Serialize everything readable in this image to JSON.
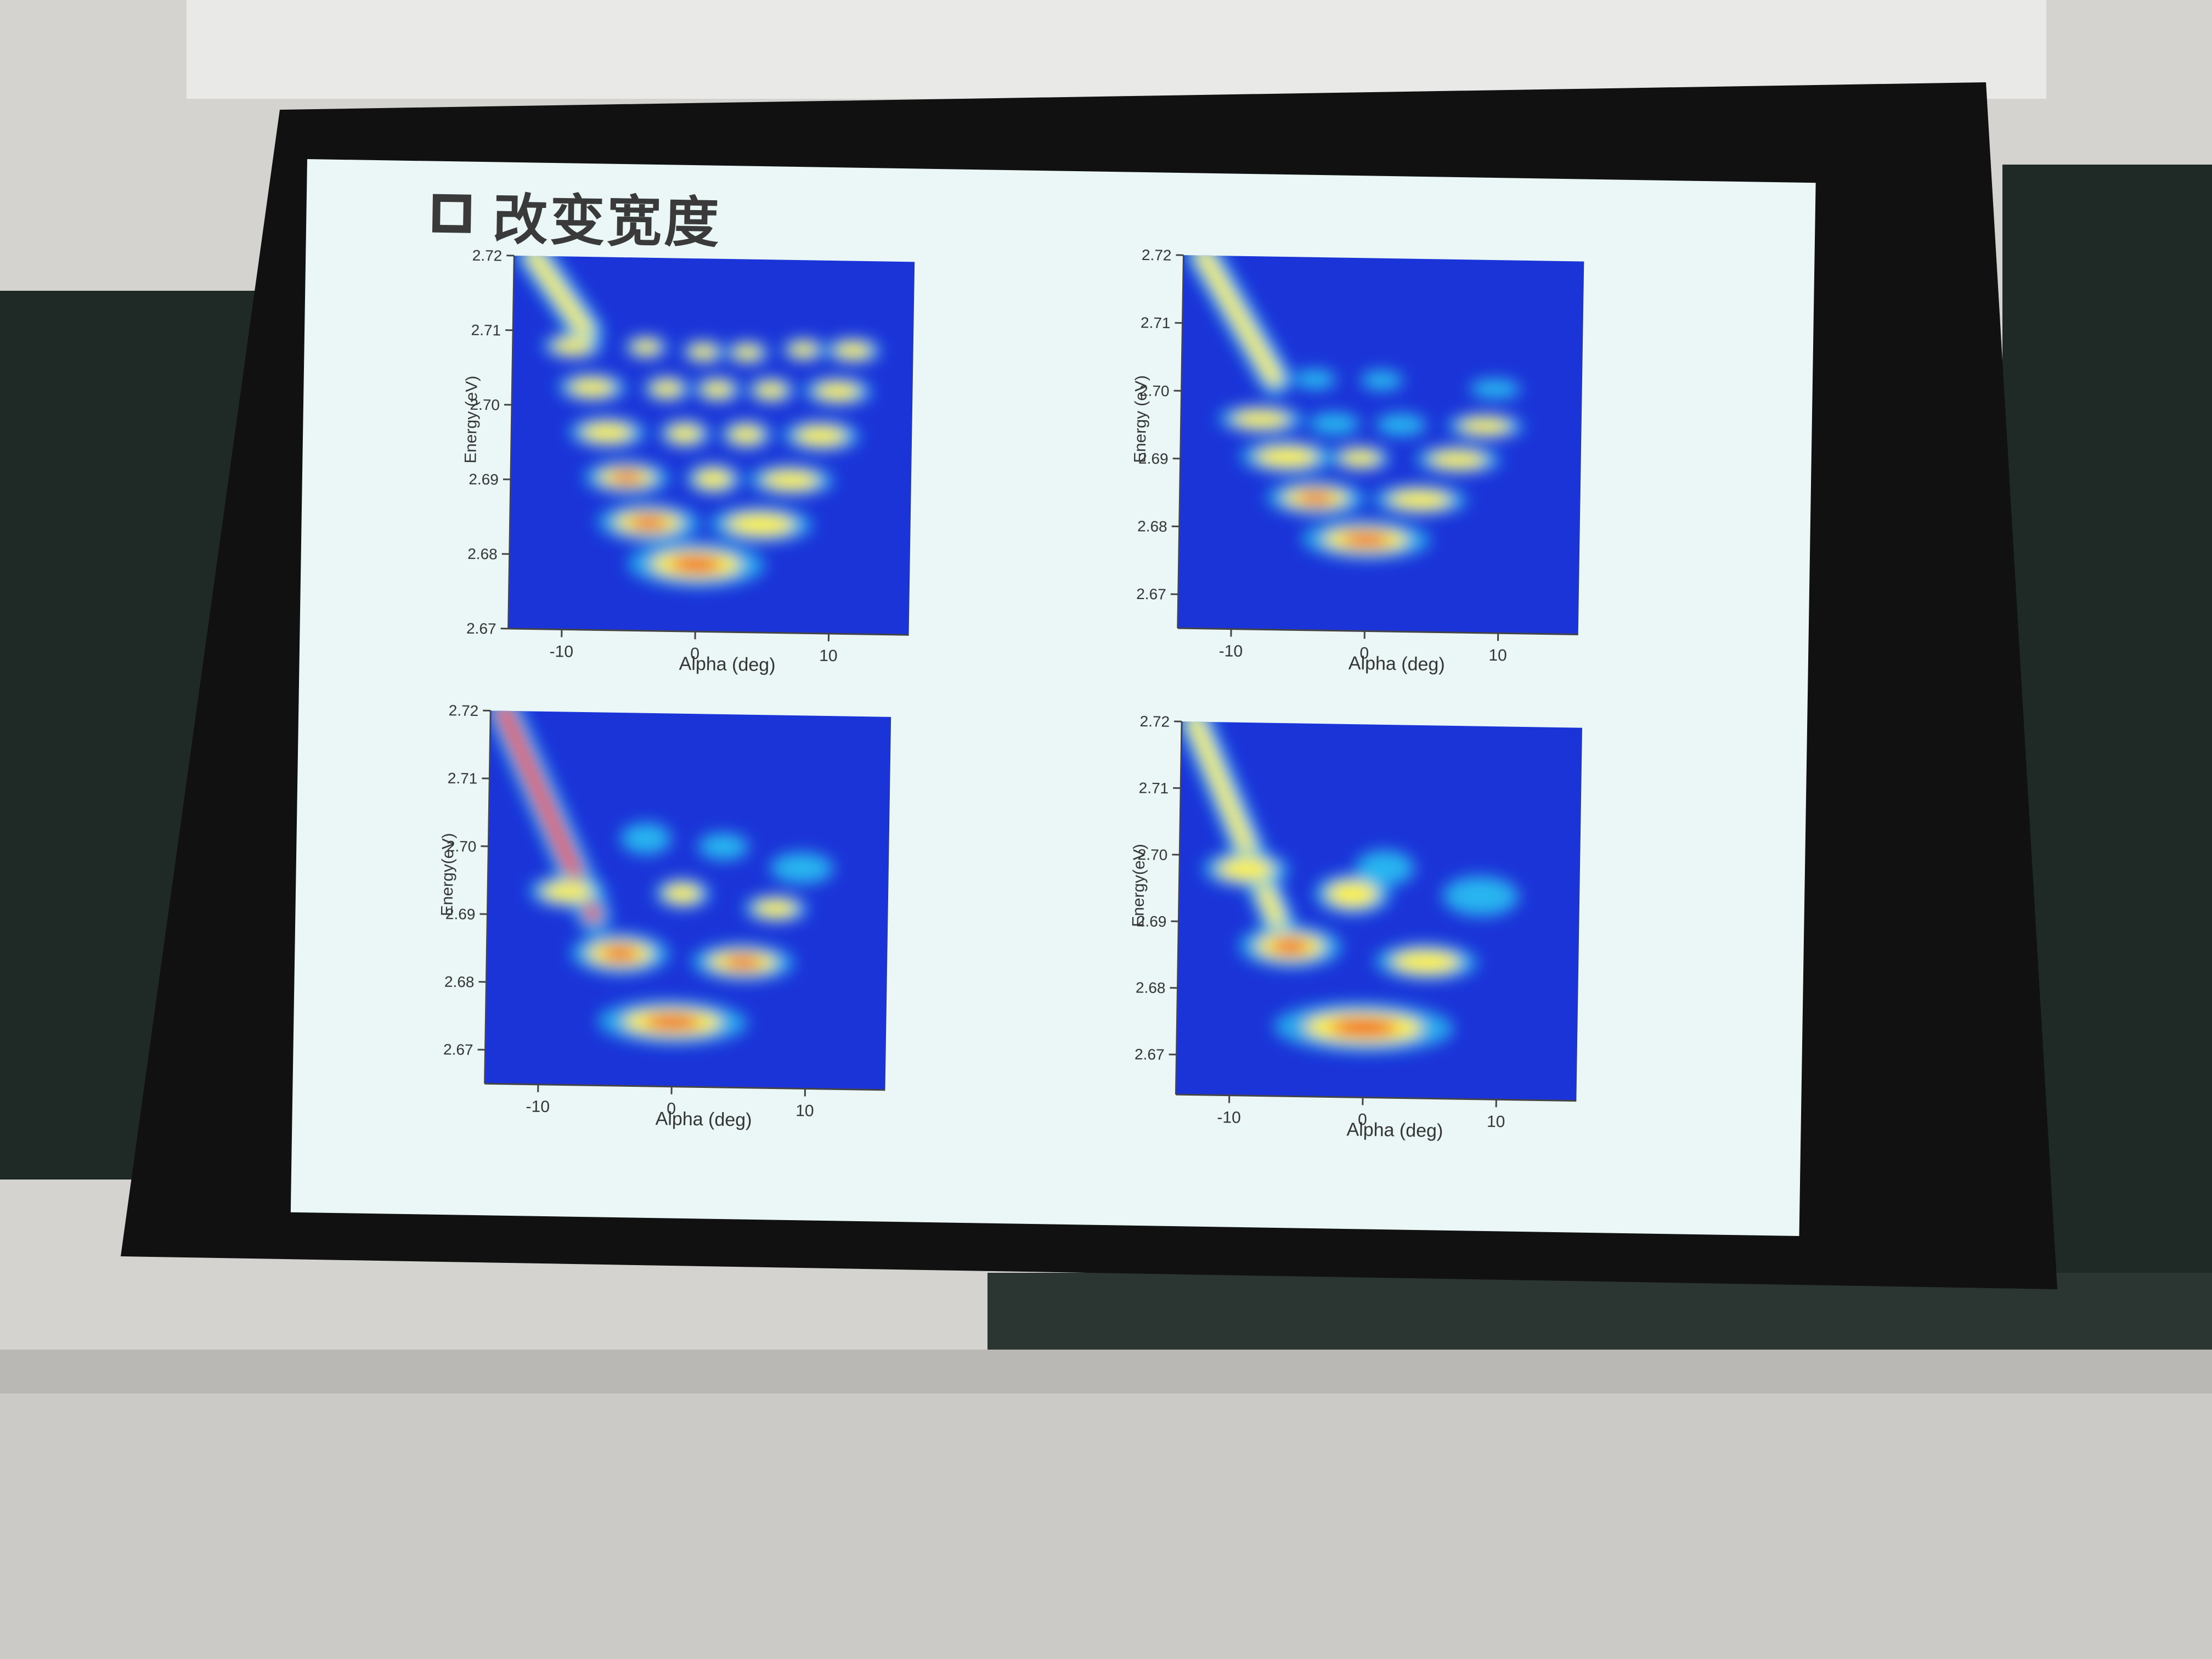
{
  "slide": {
    "title": "改变宽度"
  },
  "chart_data": [
    {
      "type": "heatmap",
      "xlabel": "Alpha (deg)",
      "ylabel": "Energy (eV)",
      "xticks": [
        -10,
        0,
        10
      ],
      "yticks": [
        2.67,
        2.68,
        2.69,
        2.7,
        2.71,
        2.72
      ],
      "xlim": [
        -14,
        16
      ],
      "ylim": [
        2.67,
        2.72
      ],
      "colormap": [
        "#1b34d8",
        "#28b6f0",
        "#fff23a",
        "#f0401f"
      ],
      "spots": [
        {
          "x": 0,
          "y": 2.679,
          "w": 3.2,
          "h": 0.0018,
          "v": 1.0
        },
        {
          "x": -3.6,
          "y": 2.6845,
          "w": 2.4,
          "h": 0.0015,
          "v": 0.9
        },
        {
          "x": 4.8,
          "y": 2.6845,
          "w": 2.4,
          "h": 0.0014,
          "v": 0.8
        },
        {
          "x": -5.3,
          "y": 2.6905,
          "w": 2.0,
          "h": 0.0013,
          "v": 0.85
        },
        {
          "x": 1.2,
          "y": 2.6905,
          "w": 1.3,
          "h": 0.0012,
          "v": 0.75
        },
        {
          "x": 7.0,
          "y": 2.6905,
          "w": 2.0,
          "h": 0.0012,
          "v": 0.75
        },
        {
          "x": -6.8,
          "y": 2.6965,
          "w": 1.8,
          "h": 0.0012,
          "v": 0.8
        },
        {
          "x": -1.0,
          "y": 2.6965,
          "w": 1.2,
          "h": 0.0011,
          "v": 0.7
        },
        {
          "x": 3.6,
          "y": 2.6965,
          "w": 1.2,
          "h": 0.0011,
          "v": 0.7
        },
        {
          "x": 9.2,
          "y": 2.6965,
          "w": 1.8,
          "h": 0.0012,
          "v": 0.75
        },
        {
          "x": -8.0,
          "y": 2.7025,
          "w": 1.6,
          "h": 0.0011,
          "v": 0.75
        },
        {
          "x": -2.4,
          "y": 2.7025,
          "w": 1.1,
          "h": 0.001,
          "v": 0.65
        },
        {
          "x": 1.4,
          "y": 2.7025,
          "w": 1.1,
          "h": 0.001,
          "v": 0.65
        },
        {
          "x": 5.4,
          "y": 2.7025,
          "w": 1.1,
          "h": 0.001,
          "v": 0.65
        },
        {
          "x": 10.4,
          "y": 2.7025,
          "w": 1.6,
          "h": 0.0011,
          "v": 0.7
        },
        {
          "x": -9.5,
          "y": 2.708,
          "w": 1.4,
          "h": 0.001,
          "v": 0.55
        },
        {
          "x": -4.0,
          "y": 2.708,
          "w": 1.0,
          "h": 0.0009,
          "v": 0.45
        },
        {
          "x": 0.3,
          "y": 2.7075,
          "w": 1.0,
          "h": 0.0009,
          "v": 0.45
        },
        {
          "x": 3.6,
          "y": 2.7075,
          "w": 1.0,
          "h": 0.0009,
          "v": 0.45
        },
        {
          "x": 7.8,
          "y": 2.708,
          "w": 1.0,
          "h": 0.0009,
          "v": 0.45
        },
        {
          "x": 11.5,
          "y": 2.708,
          "w": 1.3,
          "h": 0.001,
          "v": 0.5
        }
      ],
      "streak": {
        "x0": -12.5,
        "y0": 2.72,
        "x1": -8.5,
        "y1": 2.71,
        "v": 0.8
      }
    },
    {
      "type": "heatmap",
      "xlabel": "Alpha (deg)",
      "ylabel": "Energy (eV)",
      "xticks": [
        -10,
        0,
        10
      ],
      "yticks": [
        2.67,
        2.68,
        2.69,
        2.7,
        2.71,
        2.72
      ],
      "xlim": [
        -14,
        16
      ],
      "ylim": [
        2.665,
        2.72
      ],
      "colormap": [
        "#1b34d8",
        "#28b6f0",
        "#fff23a",
        "#f0401f"
      ],
      "spots": [
        {
          "x": 0,
          "y": 2.6785,
          "w": 3.0,
          "h": 0.0017,
          "v": 1.0
        },
        {
          "x": -3.8,
          "y": 2.6845,
          "w": 2.3,
          "h": 0.0015,
          "v": 0.9
        },
        {
          "x": 4.0,
          "y": 2.6845,
          "w": 2.2,
          "h": 0.0013,
          "v": 0.8
        },
        {
          "x": -6.0,
          "y": 2.6905,
          "w": 2.2,
          "h": 0.0014,
          "v": 0.7
        },
        {
          "x": -0.5,
          "y": 2.6905,
          "w": 1.4,
          "h": 0.0011,
          "v": 0.6
        },
        {
          "x": 6.8,
          "y": 2.6905,
          "w": 2.0,
          "h": 0.0012,
          "v": 0.65
        },
        {
          "x": -8.0,
          "y": 2.696,
          "w": 2.0,
          "h": 0.0012,
          "v": 0.5
        },
        {
          "x": -2.5,
          "y": 2.6955,
          "w": 1.2,
          "h": 0.001,
          "v": 0.4
        },
        {
          "x": 2.5,
          "y": 2.6955,
          "w": 1.2,
          "h": 0.001,
          "v": 0.4
        },
        {
          "x": 8.8,
          "y": 2.6955,
          "w": 1.8,
          "h": 0.0011,
          "v": 0.5
        },
        {
          "x": -4.0,
          "y": 2.702,
          "w": 1.0,
          "h": 0.0009,
          "v": 0.3
        },
        {
          "x": 1.0,
          "y": 2.702,
          "w": 1.0,
          "h": 0.0009,
          "v": 0.3
        },
        {
          "x": 9.5,
          "y": 2.701,
          "w": 1.2,
          "h": 0.0009,
          "v": 0.35
        }
      ],
      "streak": {
        "x0": -12.5,
        "y0": 2.72,
        "x1": -7.0,
        "y1": 2.702,
        "v": 0.6
      }
    },
    {
      "type": "heatmap",
      "xlabel": "Alpha (deg)",
      "ylabel": "Energy(eV)",
      "xticks": [
        -10,
        0,
        10
      ],
      "yticks": [
        2.67,
        2.68,
        2.69,
        2.7,
        2.71,
        2.72
      ],
      "xlim": [
        -14,
        16
      ],
      "ylim": [
        2.665,
        2.72
      ],
      "colormap": [
        "#1b34d8",
        "#28b6f0",
        "#fff23a",
        "#f0401f"
      ],
      "spots": [
        {
          "x": 0,
          "y": 2.6745,
          "w": 3.5,
          "h": 0.0019,
          "v": 1.0
        },
        {
          "x": -4.0,
          "y": 2.6845,
          "w": 2.3,
          "h": 0.0018,
          "v": 0.95
        },
        {
          "x": 5.2,
          "y": 2.6835,
          "w": 2.4,
          "h": 0.0016,
          "v": 0.85
        },
        {
          "x": 0.6,
          "y": 2.6935,
          "w": 1.3,
          "h": 0.0013,
          "v": 0.7
        },
        {
          "x": 7.6,
          "y": 2.6915,
          "w": 1.5,
          "h": 0.0012,
          "v": 0.6
        },
        {
          "x": -8.0,
          "y": 2.6935,
          "w": 1.8,
          "h": 0.0014,
          "v": 0.55
        },
        {
          "x": -2.2,
          "y": 2.7015,
          "w": 1.2,
          "h": 0.0014,
          "v": 0.4
        },
        {
          "x": 3.6,
          "y": 2.7005,
          "w": 1.2,
          "h": 0.0012,
          "v": 0.4
        },
        {
          "x": 9.5,
          "y": 2.6975,
          "w": 1.5,
          "h": 0.0014,
          "v": 0.35
        }
      ],
      "streak": {
        "x0": -13.0,
        "y0": 2.72,
        "x1": -6.0,
        "y1": 2.69,
        "v": 0.85
      }
    },
    {
      "type": "heatmap",
      "xlabel": "Alpha (deg)",
      "ylabel": "Energy(eV)",
      "xticks": [
        -10,
        0,
        10
      ],
      "yticks": [
        2.67,
        2.68,
        2.69,
        2.7,
        2.71,
        2.72
      ],
      "xlim": [
        -14,
        16
      ],
      "ylim": [
        2.664,
        2.72
      ],
      "colormap": [
        "#1b34d8",
        "#28b6f0",
        "#fff23a",
        "#f0401f"
      ],
      "spots": [
        {
          "x": 0,
          "y": 2.6745,
          "w": 4.2,
          "h": 0.0022,
          "v": 1.0
        },
        {
          "x": -5.6,
          "y": 2.6865,
          "w": 2.4,
          "h": 0.0019,
          "v": 0.9
        },
        {
          "x": 4.6,
          "y": 2.6845,
          "w": 2.4,
          "h": 0.0016,
          "v": 0.8
        },
        {
          "x": -1.0,
          "y": 2.6945,
          "w": 1.8,
          "h": 0.0018,
          "v": 0.45
        },
        {
          "x": 1.4,
          "y": 2.6985,
          "w": 1.4,
          "h": 0.0016,
          "v": 0.35
        },
        {
          "x": 8.6,
          "y": 2.6945,
          "w": 1.8,
          "h": 0.0018,
          "v": 0.4
        },
        {
          "x": -9.0,
          "y": 2.698,
          "w": 2.0,
          "h": 0.0016,
          "v": 0.45
        }
      ],
      "streak": {
        "x0": -13.0,
        "y0": 2.72,
        "x1": -6.5,
        "y1": 2.69,
        "v": 0.75
      }
    }
  ]
}
